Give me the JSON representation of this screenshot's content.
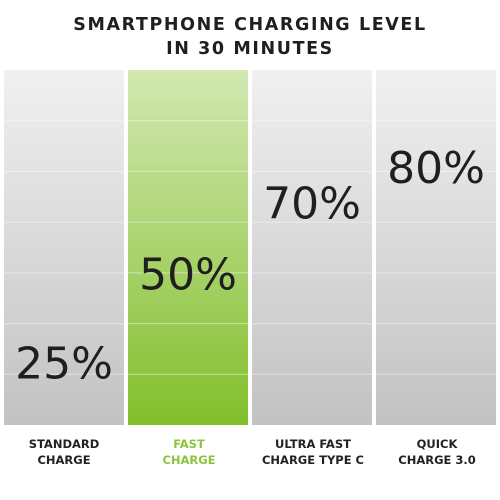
{
  "chart_data": {
    "type": "bar",
    "title_lines": [
      "SMARTPHONE CHARGING LEVEL",
      "IN 30 MINUTES"
    ],
    "categories": [
      [
        "STANDARD",
        "CHARGE"
      ],
      [
        "FAST",
        "CHARGE"
      ],
      [
        "ULTRA FAST",
        "CHARGE TYPE C"
      ],
      [
        "QUICK",
        "CHARGE 3.0"
      ]
    ],
    "values": [
      25,
      50,
      70,
      80
    ],
    "value_labels": [
      "25%",
      "50%",
      "70%",
      "80%"
    ],
    "highlight_index": 1,
    "ylim": [
      0,
      100
    ],
    "grid": true
  },
  "colors": {
    "highlight_text": "#8ac43f",
    "highlight_top": "#d2e8b2",
    "highlight_bottom": "#82bf2c",
    "gray_top": "#f0f0f0",
    "gray_bottom": "#c2c2c2",
    "text": "#1f1f1f"
  }
}
